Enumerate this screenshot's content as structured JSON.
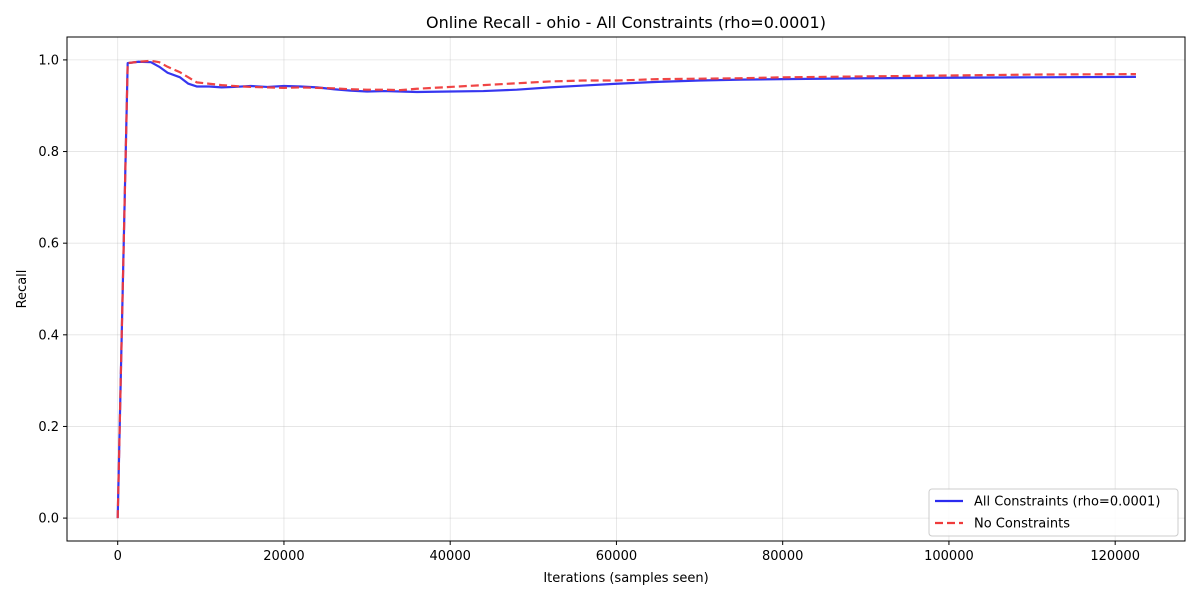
{
  "chart_data": {
    "type": "line",
    "title": "Online Recall - ohio - All Constraints (rho=0.0001)",
    "xlabel": "Iterations (samples seen)",
    "ylabel": "Recall",
    "xlim": [
      -6100,
      128400
    ],
    "ylim": [
      -0.05,
      1.05
    ],
    "xticks": [
      0,
      20000,
      40000,
      60000,
      80000,
      100000,
      120000
    ],
    "xtick_labels": [
      "0",
      "20000",
      "40000",
      "60000",
      "80000",
      "100000",
      "120000"
    ],
    "yticks": [
      0.0,
      0.2,
      0.4,
      0.6,
      0.8,
      1.0
    ],
    "ytick_labels": [
      "0.0",
      "0.2",
      "0.4",
      "0.6",
      "0.8",
      "1.0"
    ],
    "grid": true,
    "legend_position": "bottom-right",
    "series": [
      {
        "name": "All Constraints (rho=0.0001)",
        "color": "#2b2bef",
        "style": "solid",
        "points": [
          [
            0,
            0.0
          ],
          [
            1200,
            0.993
          ],
          [
            2500,
            0.996
          ],
          [
            4000,
            0.995
          ],
          [
            5000,
            0.985
          ],
          [
            6000,
            0.972
          ],
          [
            7500,
            0.962
          ],
          [
            8500,
            0.948
          ],
          [
            9500,
            0.942
          ],
          [
            11000,
            0.942
          ],
          [
            12500,
            0.94
          ],
          [
            14000,
            0.941
          ],
          [
            16000,
            0.943
          ],
          [
            18000,
            0.941
          ],
          [
            20000,
            0.943
          ],
          [
            22000,
            0.942
          ],
          [
            24000,
            0.94
          ],
          [
            26000,
            0.936
          ],
          [
            28000,
            0.933
          ],
          [
            30000,
            0.931
          ],
          [
            32000,
            0.932
          ],
          [
            34000,
            0.931
          ],
          [
            36000,
            0.93
          ],
          [
            40000,
            0.931
          ],
          [
            44000,
            0.932
          ],
          [
            48000,
            0.935
          ],
          [
            52000,
            0.94
          ],
          [
            56000,
            0.944
          ],
          [
            60000,
            0.948
          ],
          [
            65000,
            0.952
          ],
          [
            70000,
            0.955
          ],
          [
            75000,
            0.957
          ],
          [
            80000,
            0.958
          ],
          [
            90000,
            0.96
          ],
          [
            100000,
            0.961
          ],
          [
            110000,
            0.962
          ],
          [
            122500,
            0.963
          ]
        ]
      },
      {
        "name": "No Constraints",
        "color": "#ef3b3b",
        "style": "dashed",
        "points": [
          [
            0,
            0.0
          ],
          [
            1200,
            0.993
          ],
          [
            2500,
            0.996
          ],
          [
            4000,
            0.998
          ],
          [
            5000,
            0.995
          ],
          [
            6000,
            0.985
          ],
          [
            7500,
            0.973
          ],
          [
            8500,
            0.962
          ],
          [
            9500,
            0.951
          ],
          [
            11000,
            0.948
          ],
          [
            12500,
            0.945
          ],
          [
            14000,
            0.943
          ],
          [
            16000,
            0.941
          ],
          [
            18000,
            0.94
          ],
          [
            20000,
            0.939
          ],
          [
            22000,
            0.94
          ],
          [
            24000,
            0.939
          ],
          [
            26000,
            0.938
          ],
          [
            28000,
            0.936
          ],
          [
            30000,
            0.935
          ],
          [
            32000,
            0.935
          ],
          [
            34000,
            0.934
          ],
          [
            36000,
            0.937
          ],
          [
            40000,
            0.941
          ],
          [
            44000,
            0.945
          ],
          [
            48000,
            0.949
          ],
          [
            52000,
            0.953
          ],
          [
            56000,
            0.955
          ],
          [
            60000,
            0.955
          ],
          [
            65000,
            0.958
          ],
          [
            70000,
            0.959
          ],
          [
            75000,
            0.96
          ],
          [
            80000,
            0.962
          ],
          [
            90000,
            0.964
          ],
          [
            100000,
            0.966
          ],
          [
            110000,
            0.968
          ],
          [
            122500,
            0.969
          ]
        ]
      }
    ]
  }
}
